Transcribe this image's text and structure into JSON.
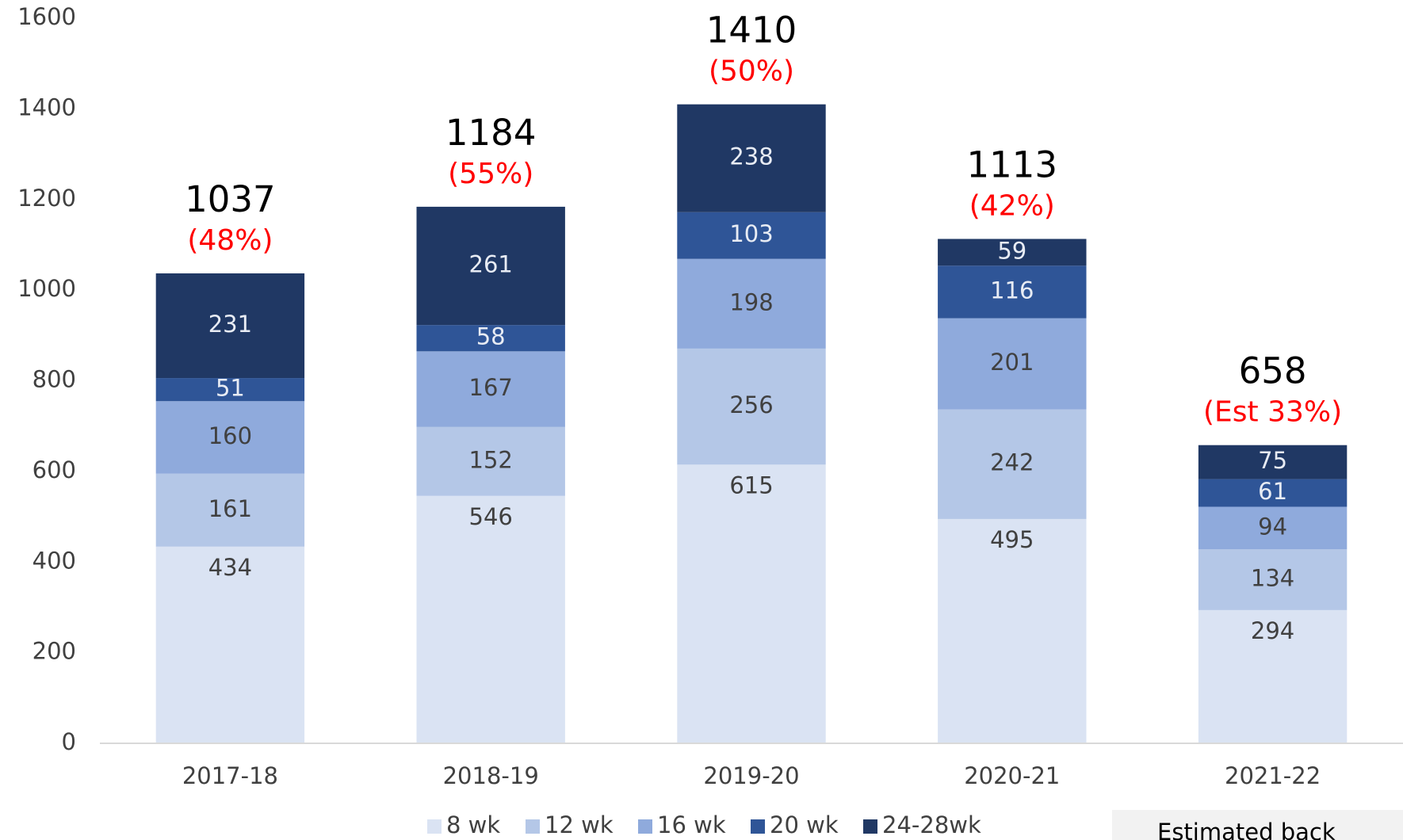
{
  "chart_data": {
    "type": "stacked_bar",
    "categories": [
      "2017-18",
      "2018-19",
      "2019-20",
      "2020-21",
      "2021-22"
    ],
    "series": [
      {
        "name": "8 wk",
        "color": "#dae3f3",
        "values": [
          434,
          546,
          615,
          495,
          294
        ]
      },
      {
        "name": "12 wk",
        "color": "#b4c7e7",
        "values": [
          161,
          152,
          256,
          242,
          134
        ]
      },
      {
        "name": "16 wk",
        "color": "#8faadc",
        "values": [
          160,
          167,
          198,
          201,
          94
        ]
      },
      {
        "name": "20 wk",
        "color": "#2f5597",
        "values": [
          51,
          58,
          103,
          116,
          61
        ]
      },
      {
        "name": "24-28wk",
        "color": "#203864",
        "values": [
          231,
          261,
          238,
          59,
          75
        ]
      }
    ],
    "totals": [
      1037,
      1184,
      1410,
      1113,
      658
    ],
    "shares": [
      "(48%)",
      "(55%)",
      "(50%)",
      "(42%)",
      "(Est 33%)"
    ],
    "note": "Estimated back",
    "ylim": [
      0,
      1600
    ],
    "yticks": [
      0,
      200,
      400,
      600,
      800,
      1000,
      1200,
      1400,
      1600
    ],
    "legend": "bottom"
  }
}
